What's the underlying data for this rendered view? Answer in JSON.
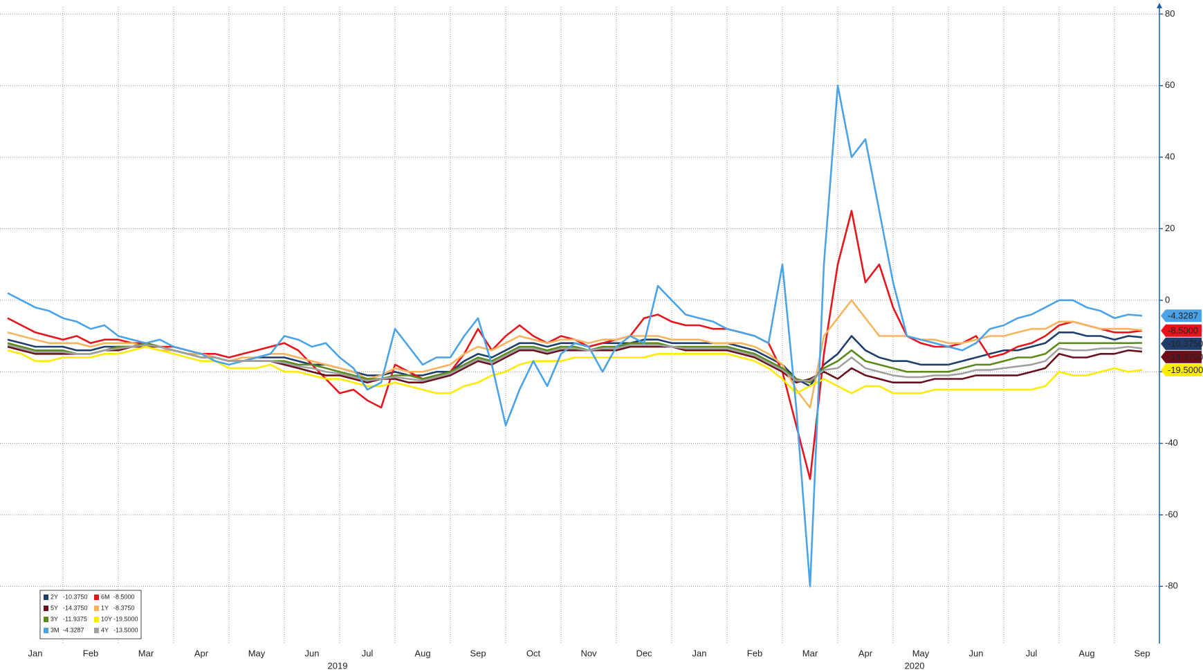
{
  "chart_data": {
    "type": "line",
    "annotations": [
      "2019",
      "2020"
    ],
    "categories": [
      null,
      null,
      "Jan",
      null,
      null,
      null,
      "Feb",
      null,
      null,
      null,
      "Mar",
      null,
      null,
      null,
      "Apr",
      null,
      null,
      null,
      "May",
      null,
      null,
      null,
      "Jun",
      null,
      null,
      null,
      "Jul",
      null,
      null,
      null,
      "Aug",
      null,
      null,
      null,
      "Sep",
      null,
      null,
      null,
      "Oct",
      null,
      null,
      null,
      "Nov",
      null,
      null,
      null,
      "Dec",
      null,
      null,
      null,
      "Jan",
      null,
      null,
      null,
      "Feb",
      null,
      null,
      null,
      "Mar",
      null,
      null,
      null,
      "Apr",
      null,
      null,
      null,
      "May",
      null,
      null,
      null,
      "Jun",
      null,
      null,
      null,
      "Jul",
      null,
      null,
      null,
      "Aug",
      null,
      null,
      null,
      "Sep"
    ],
    "ylim": [
      -96,
      82
    ],
    "yticks": [
      80,
      60,
      40,
      20,
      0,
      -20,
      -40,
      -60,
      -80
    ],
    "grid": true,
    "series": [
      {
        "name": "2Y",
        "last_label": "-10.3750",
        "tag": true,
        "color": "#1f3d6b",
        "values": [
          -11,
          -12,
          -13,
          -13,
          -13,
          -14,
          -14,
          -13,
          -13,
          -13,
          -12,
          -13,
          -14,
          -15,
          -15,
          -16,
          -17,
          -17,
          -16,
          -16,
          -16,
          -17,
          -18,
          -18,
          -19,
          -20,
          -21,
          -21,
          -20,
          -21,
          -21,
          -20,
          -20,
          -17,
          -15,
          -16,
          -14,
          -12,
          -12,
          -13,
          -12,
          -12,
          -13,
          -12,
          -12,
          -12,
          -11,
          -11,
          -12,
          -12,
          -12,
          -12,
          -12,
          -13,
          -14,
          -16,
          -18,
          -22,
          -24,
          -18,
          -15,
          -10,
          -14,
          -16,
          -17,
          -17,
          -18,
          -18,
          -18,
          -17,
          -16,
          -15,
          -14,
          -14,
          -13,
          -12,
          -9,
          -9,
          -10,
          -10,
          -11,
          -10,
          -10.375
        ]
      },
      {
        "name": "6M",
        "last_label": "-8.5000",
        "tag": true,
        "color": "#e8141c",
        "values": [
          -5,
          -7,
          -9,
          -10,
          -11,
          -10,
          -12,
          -11,
          -11,
          -12,
          -12,
          -13,
          -13,
          -14,
          -15,
          -15,
          -16,
          -15,
          -14,
          -13,
          -12,
          -14,
          -18,
          -22,
          -26,
          -25,
          -28,
          -30,
          -18,
          -20,
          -22,
          -21,
          -20,
          -15,
          -8,
          -14,
          -10,
          -7,
          -10,
          -12,
          -10,
          -11,
          -13,
          -12,
          -11,
          -10,
          -5,
          -4,
          -6,
          -7,
          -7,
          -8,
          -8,
          -9,
          -10,
          -12,
          -20,
          -35,
          -50,
          -15,
          10,
          25,
          5,
          10,
          -2,
          -10,
          -12,
          -13,
          -13,
          -12,
          -10,
          -16,
          -15,
          -13,
          -12,
          -10,
          -7,
          -6,
          -7,
          -8,
          -9,
          -9,
          -8.5
        ]
      },
      {
        "name": "5Y",
        "last_label": "-14.3750",
        "tag": true,
        "color": "#6b0f1a",
        "values": [
          -13,
          -14,
          -15,
          -15,
          -15,
          -15,
          -15,
          -14,
          -14,
          -13,
          -13,
          -13,
          -14,
          -15,
          -16,
          -16,
          -17,
          -17,
          -17,
          -17,
          -18,
          -19,
          -20,
          -21,
          -21,
          -22,
          -23,
          -22,
          -22,
          -23,
          -23,
          -22,
          -21,
          -19,
          -17,
          -18,
          -16,
          -14,
          -14,
          -15,
          -14,
          -14,
          -14,
          -14,
          -14,
          -13,
          -13,
          -13,
          -13,
          -14,
          -14,
          -14,
          -14,
          -15,
          -16,
          -18,
          -20,
          -23,
          -22,
          -20,
          -22,
          -19,
          -21,
          -22,
          -23,
          -23,
          -23,
          -22,
          -22,
          -22,
          -21,
          -21,
          -21,
          -21,
          -20,
          -19,
          -15,
          -16,
          -16,
          -15,
          -15,
          -14,
          -14.375
        ]
      },
      {
        "name": "1Y",
        "last_label": "-8.3750",
        "color": "#f9b35c",
        "values": [
          -9,
          -10,
          -11,
          -12,
          -12,
          -12,
          -13,
          -12,
          -12,
          -12,
          -13,
          -14,
          -14,
          -15,
          -15,
          -16,
          -17,
          -16,
          -16,
          -15,
          -15,
          -16,
          -17,
          -18,
          -19,
          -20,
          -22,
          -21,
          -19,
          -20,
          -20,
          -19,
          -18,
          -15,
          -13,
          -14,
          -12,
          -10,
          -11,
          -12,
          -11,
          -11,
          -12,
          -11,
          -11,
          -10,
          -10,
          -10,
          -11,
          -11,
          -11,
          -12,
          -12,
          -12,
          -13,
          -15,
          -18,
          -25,
          -30,
          -10,
          -5,
          0,
          -5,
          -10,
          -10,
          -10,
          -11,
          -11,
          -12,
          -12,
          -11,
          -10,
          -10,
          -9,
          -8,
          -8,
          -6,
          -6,
          -7,
          -8,
          -8,
          -8,
          -8.375
        ]
      },
      {
        "name": "3Y",
        "last_label": "-11.9375",
        "color": "#5a8a1a",
        "values": [
          -12,
          -13,
          -14,
          -14,
          -14,
          -15,
          -15,
          -14,
          -13,
          -13,
          -12,
          -13,
          -14,
          -15,
          -16,
          -16,
          -17,
          -17,
          -17,
          -17,
          -17,
          -18,
          -18,
          -19,
          -20,
          -21,
          -22,
          -22,
          -21,
          -21,
          -22,
          -21,
          -20,
          -18,
          -16,
          -17,
          -15,
          -13,
          -13,
          -14,
          -13,
          -13,
          -14,
          -13,
          -13,
          -12,
          -12,
          -12,
          -13,
          -13,
          -13,
          -13,
          -13,
          -14,
          -15,
          -17,
          -19,
          -22,
          -23,
          -19,
          -17,
          -14,
          -17,
          -18,
          -19,
          -20,
          -20,
          -20,
          -20,
          -19,
          -18,
          -18,
          -17,
          -16,
          -16,
          -15,
          -12,
          -12,
          -12,
          -12,
          -12,
          -12,
          -11.9375
        ]
      },
      {
        "name": "10Y",
        "last_label": "-19.5000",
        "tag": true,
        "color": "#ffeb00",
        "values": [
          -14,
          -15,
          -17,
          -17,
          -16,
          -16,
          -16,
          -15,
          -15,
          -14,
          -13,
          -14,
          -15,
          -16,
          -17,
          -17,
          -19,
          -19,
          -19,
          -18,
          -20,
          -20,
          -21,
          -22,
          -22,
          -23,
          -24,
          -24,
          -23,
          -24,
          -25,
          -26,
          -26,
          -24,
          -23,
          -21,
          -20,
          -18,
          -17,
          -17,
          -17,
          -16,
          -16,
          -16,
          -16,
          -16,
          -16,
          -15,
          -15,
          -15,
          -15,
          -15,
          -15,
          -16,
          -17,
          -19,
          -22,
          -26,
          -24,
          -22,
          -24,
          -26,
          -24,
          -24,
          -26,
          -26,
          -26,
          -25,
          -25,
          -25,
          -25,
          -25,
          -25,
          -25,
          -25,
          -24,
          -20,
          -21,
          -21,
          -20,
          -19,
          -20,
          -19.5
        ]
      },
      {
        "name": "3M",
        "last_label": "-4.3287",
        "tag": true,
        "color": "#4aa3e8",
        "values": [
          2,
          0,
          -2,
          -3,
          -5,
          -6,
          -8,
          -7,
          -10,
          -11,
          -12,
          -11,
          -13,
          -14,
          -15,
          -17,
          -18,
          -17,
          -16,
          -15,
          -10,
          -11,
          -13,
          -12,
          -16,
          -19,
          -25,
          -23,
          -8,
          -13,
          -18,
          -16,
          -16,
          -10,
          -5,
          -18,
          -35,
          -25,
          -17,
          -24,
          -15,
          -12,
          -13,
          -20,
          -13,
          -10,
          -12,
          4,
          0,
          -4,
          -5,
          -6,
          -8,
          -9,
          -10,
          -12,
          10,
          -30,
          -80,
          10,
          60,
          40,
          45,
          25,
          5,
          -10,
          -11,
          -12,
          -13,
          -14,
          -12,
          -8,
          -7,
          -5,
          -4,
          -2,
          0,
          0,
          -2,
          -3,
          -5,
          -4,
          -4.3287
        ]
      },
      {
        "name": "4Y",
        "last_label": "-13.5000",
        "color": "#a0a0a0",
        "values": [
          -12.5,
          -13.5,
          -14.5,
          -14.5,
          -14.5,
          -15,
          -15,
          -14,
          -13.5,
          -13,
          -12.5,
          -13,
          -14,
          -15,
          -16,
          -16,
          -17,
          -17,
          -17,
          -17,
          -17.5,
          -18.5,
          -19,
          -20,
          -20.5,
          -21.5,
          -22.5,
          -22,
          -21.5,
          -22,
          -22.5,
          -21.5,
          -20.5,
          -18.5,
          -16.5,
          -17.5,
          -15.5,
          -13.5,
          -13.5,
          -14.5,
          -13.5,
          -13.5,
          -14,
          -13.5,
          -13.5,
          -12.5,
          -12.5,
          -12.5,
          -13,
          -13.5,
          -13.5,
          -13.5,
          -13.5,
          -14.5,
          -15.5,
          -17.5,
          -19.5,
          -22.5,
          -22.5,
          -19.5,
          -19,
          -16,
          -19,
          -20,
          -21,
          -21.5,
          -21.5,
          -21,
          -21,
          -20.5,
          -19.5,
          -19.5,
          -19,
          -18.5,
          -18,
          -17,
          -13.5,
          -14,
          -14,
          -13.5,
          -13.5,
          -13,
          -13.5
        ]
      }
    ]
  }
}
